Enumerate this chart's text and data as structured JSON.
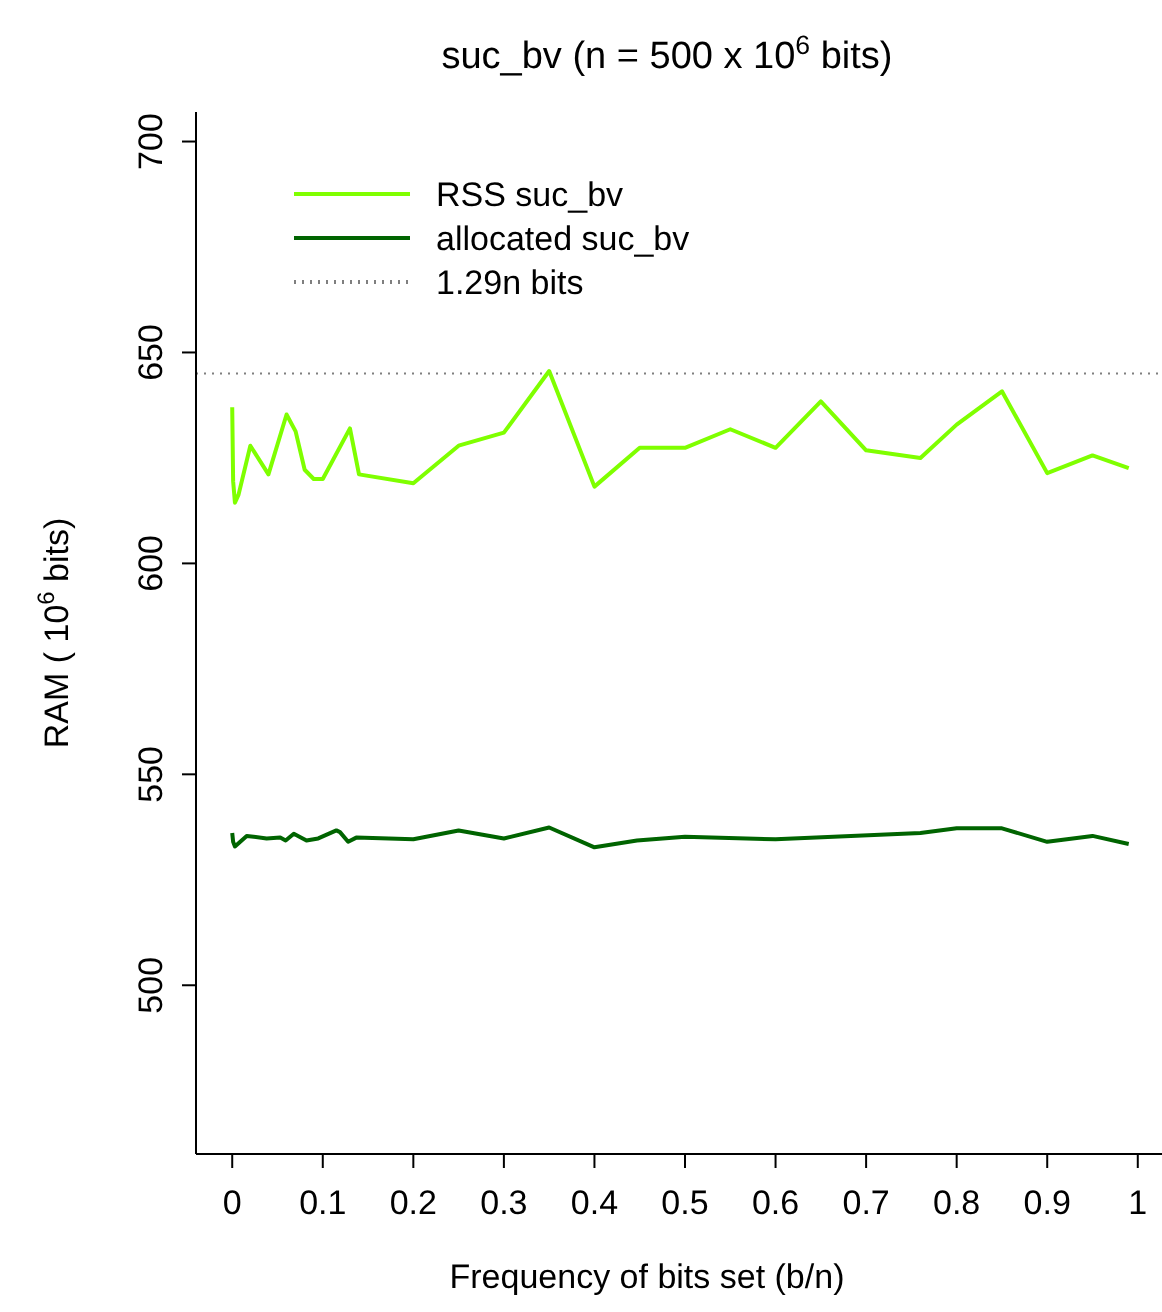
{
  "chart_data": {
    "type": "line",
    "title": "suc_bv (n = 500 x 10$^{6}$ bits)",
    "xlabel": "Frequency of bits set (b/n)",
    "ylabel": "RAM ( 10$^{6}$ bits)",
    "series": [
      {
        "name": "RSS suc_bv",
        "color": "#7fff00",
        "x": [
          0,
          0.001,
          0.003,
          0.007,
          0.02,
          0.04,
          0.06,
          0.07,
          0.08,
          0.09,
          0.1,
          0.13,
          0.14,
          0.2,
          0.25,
          0.3,
          0.35,
          0.4,
          0.45,
          0.5,
          0.55,
          0.6,
          0.65,
          0.7,
          0.76,
          0.8,
          0.85,
          0.9,
          0.95,
          0.99
        ],
        "values": [
          637,
          619.5,
          614.4,
          616.3,
          627.9,
          621.1,
          635.3,
          631.3,
          622.2,
          620,
          620,
          632,
          621.1,
          619,
          627.9,
          631,
          645.6,
          618.2,
          627.4,
          627.4,
          631.8,
          627.4,
          638.4,
          626.8,
          625,
          632.9,
          640.8,
          621.4,
          625.6,
          622.6
        ]
      },
      {
        "name": "allocated suc_bv",
        "color": "#006400",
        "x": [
          0,
          0.001,
          0.003,
          0.016,
          0.038,
          0.053,
          0.059,
          0.068,
          0.082,
          0.095,
          0.115,
          0.119,
          0.128,
          0.137,
          0.2,
          0.25,
          0.3,
          0.35,
          0.4,
          0.447,
          0.5,
          0.6,
          0.76,
          0.8,
          0.85,
          0.9,
          0.95,
          0.99
        ],
        "values": [
          536.1,
          534,
          532.9,
          535.4,
          534.8,
          535,
          534.3,
          535.9,
          534.3,
          534.8,
          536.7,
          536.3,
          534,
          535,
          534.6,
          536.7,
          534.8,
          537.4,
          532.7,
          534.3,
          535.2,
          534.6,
          536.1,
          537.2,
          537.2,
          534,
          535.4,
          533.5
        ]
      }
    ],
    "ref_lines": [
      {
        "axis": "y",
        "value": 645,
        "label": "1.29n bits",
        "color": "#7f7f7f",
        "line_style": "dotted"
      }
    ],
    "xlim": [
      -0.04,
      1.04
    ],
    "ylim": [
      460,
      707
    ],
    "xticks": [
      0,
      0.1,
      0.2,
      0.3,
      0.4,
      0.5,
      0.6,
      0.7,
      0.8,
      0.9,
      1
    ],
    "yticks": [
      500,
      550,
      600,
      650,
      700
    ],
    "legend": "top left",
    "grid": false,
    "marker": "none",
    "line_style": "solid"
  }
}
